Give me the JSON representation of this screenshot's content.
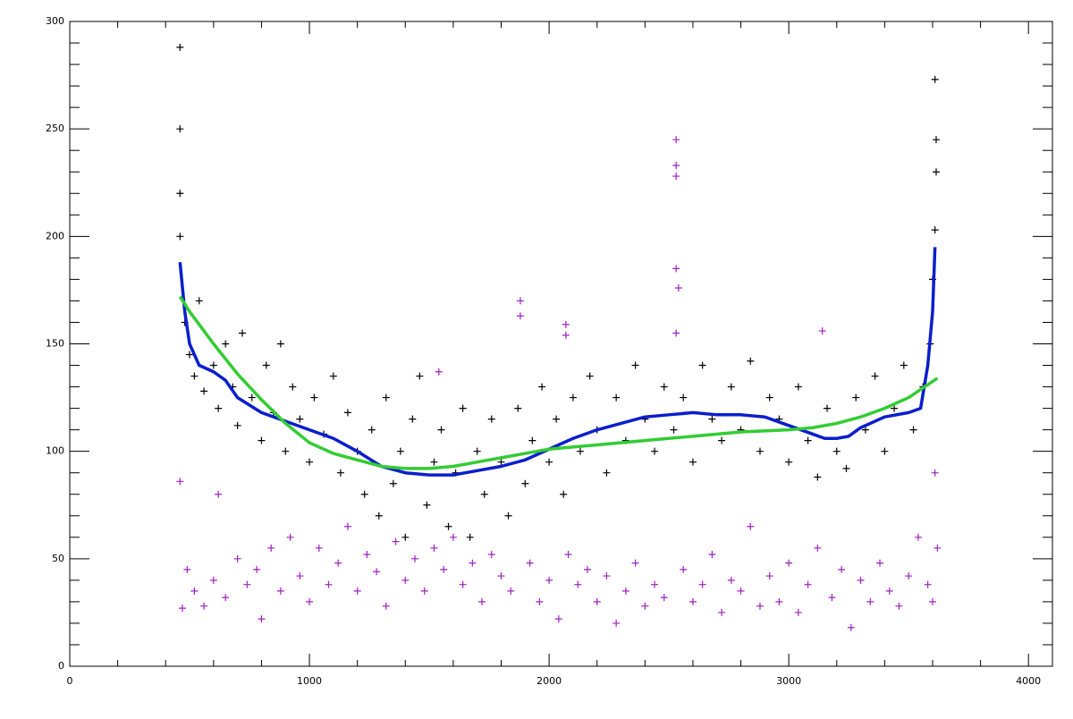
{
  "chart_data": {
    "type": "scatter",
    "xlim": [
      0,
      4100
    ],
    "ylim": [
      0,
      300
    ],
    "xticks": [
      0,
      1000,
      2000,
      3000,
      4000
    ],
    "yticks": [
      0,
      50,
      100,
      150,
      200,
      250,
      300
    ],
    "xminorticks": [
      200,
      400,
      600,
      800,
      1200,
      1400,
      1600,
      1800,
      2200,
      2400,
      2600,
      2800,
      3200,
      3400,
      3600,
      3800
    ],
    "yminorticks": [
      10,
      20,
      30,
      40,
      60,
      70,
      80,
      90,
      110,
      120,
      130,
      140,
      160,
      170,
      180,
      190,
      210,
      220,
      230,
      240,
      260,
      270,
      280,
      290
    ],
    "series": [
      {
        "style": "marker",
        "color": "#000000",
        "x": [
          480,
          500,
          520,
          540,
          560,
          600,
          620,
          650,
          680,
          700,
          720,
          760,
          800,
          820,
          850,
          880,
          900,
          930,
          960,
          1000,
          1020,
          1060,
          1100,
          1130,
          1160,
          1200,
          1230,
          1260,
          1290,
          1320,
          1350,
          1380,
          1400,
          1430,
          1460,
          1490,
          1520,
          1550,
          1580,
          1610,
          1640,
          1670,
          1700,
          1730,
          1760,
          1800,
          1830,
          1870,
          1900,
          1930,
          1970,
          2000,
          2030,
          2060,
          2100,
          2130,
          2170,
          2200,
          2240,
          2280,
          2320,
          2360,
          2400,
          2440,
          2480,
          2520,
          2560,
          2600,
          2640,
          2680,
          2720,
          2760,
          2800,
          2840,
          2880,
          2920,
          2960,
          3000,
          3040,
          3080,
          3120,
          3160,
          3200,
          3240,
          3280,
          3320,
          3360,
          3400,
          3440,
          3480,
          3520,
          3560,
          3590,
          3600,
          460,
          460,
          460,
          460,
          3610,
          3615,
          3615,
          3610
        ],
        "values": [
          160,
          145,
          135,
          170,
          128,
          140,
          120,
          150,
          130,
          112,
          155,
          125,
          105,
          140,
          118,
          150,
          100,
          130,
          115,
          95,
          125,
          108,
          135,
          90,
          118,
          100,
          80,
          110,
          70,
          125,
          85,
          100,
          60,
          115,
          135,
          75,
          95,
          110,
          65,
          90,
          120,
          60,
          100,
          80,
          115,
          95,
          70,
          120,
          85,
          105,
          130,
          95,
          115,
          80,
          125,
          100,
          135,
          110,
          90,
          125,
          105,
          140,
          115,
          100,
          130,
          110,
          125,
          95,
          140,
          115,
          105,
          130,
          110,
          142,
          100,
          125,
          115,
          95,
          130,
          105,
          88,
          120,
          100,
          92,
          125,
          110,
          135,
          100,
          120,
          140,
          110,
          130,
          150,
          180,
          200,
          288,
          250,
          220,
          273,
          245,
          230,
          203
        ]
      },
      {
        "style": "marker",
        "color": "#a020c0",
        "x": [
          460,
          470,
          490,
          520,
          560,
          600,
          620,
          650,
          700,
          740,
          780,
          800,
          840,
          880,
          920,
          960,
          1000,
          1040,
          1080,
          1120,
          1160,
          1200,
          1240,
          1280,
          1320,
          1360,
          1400,
          1440,
          1480,
          1520,
          1540,
          1560,
          1600,
          1640,
          1680,
          1720,
          1760,
          1800,
          1840,
          1880,
          1880,
          1920,
          1960,
          2000,
          2040,
          2070,
          2070,
          2080,
          2120,
          2160,
          2200,
          2240,
          2280,
          2320,
          2360,
          2400,
          2440,
          2480,
          2530,
          2530,
          2530,
          2530,
          2540,
          2530,
          2560,
          2600,
          2640,
          2680,
          2720,
          2760,
          2800,
          2840,
          2880,
          2920,
          2960,
          3000,
          3040,
          3080,
          3120,
          3140,
          3180,
          3220,
          3260,
          3300,
          3340,
          3380,
          3420,
          3460,
          3500,
          3540,
          3580,
          3600,
          3610,
          3620
        ],
        "values": [
          86,
          27,
          45,
          35,
          28,
          40,
          80,
          32,
          50,
          38,
          45,
          22,
          55,
          35,
          60,
          42,
          30,
          55,
          38,
          48,
          65,
          35,
          52,
          44,
          28,
          58,
          40,
          50,
          35,
          55,
          137,
          45,
          60,
          38,
          48,
          30,
          52,
          42,
          35,
          170,
          163,
          48,
          30,
          40,
          22,
          159,
          154,
          52,
          38,
          45,
          30,
          42,
          20,
          35,
          48,
          28,
          38,
          32,
          245,
          233,
          228,
          185,
          176,
          155,
          45,
          30,
          38,
          52,
          25,
          40,
          35,
          65,
          28,
          42,
          30,
          48,
          25,
          38,
          55,
          156,
          32,
          45,
          18,
          40,
          30,
          48,
          35,
          28,
          42,
          60,
          38,
          30,
          90,
          55
        ]
      },
      {
        "style": "line",
        "color": "#0a1ecc",
        "x": [
          460,
          480,
          500,
          540,
          600,
          650,
          700,
          800,
          900,
          1000,
          1100,
          1200,
          1300,
          1400,
          1500,
          1600,
          1700,
          1800,
          1900,
          2000,
          2100,
          2200,
          2300,
          2400,
          2500,
          2600,
          2700,
          2800,
          2900,
          3000,
          3100,
          3150,
          3200,
          3250,
          3300,
          3400,
          3500,
          3550,
          3580,
          3600,
          3610
        ],
        "values": [
          188,
          165,
          150,
          140,
          137,
          133,
          125,
          118,
          114,
          110,
          106,
          100,
          93,
          90,
          89,
          89,
          91,
          93,
          96,
          101,
          106,
          110,
          113,
          116,
          117,
          118,
          117,
          117,
          116,
          112,
          108,
          106,
          106,
          107,
          111,
          116,
          118,
          120,
          140,
          165,
          195
        ]
      },
      {
        "style": "line",
        "color": "#33cc33",
        "x": [
          460,
          500,
          600,
          700,
          800,
          900,
          1000,
          1100,
          1200,
          1300,
          1400,
          1500,
          1600,
          1700,
          1800,
          1900,
          2000,
          2200,
          2400,
          2600,
          2800,
          3000,
          3100,
          3200,
          3300,
          3400,
          3500,
          3620
        ],
        "values": [
          172,
          165,
          150,
          136,
          124,
          113,
          104,
          99,
          96,
          93,
          92,
          92,
          93,
          95,
          97,
          99,
          101,
          103,
          105,
          107,
          109,
          110,
          111,
          113,
          116,
          120,
          125,
          134
        ]
      }
    ]
  }
}
